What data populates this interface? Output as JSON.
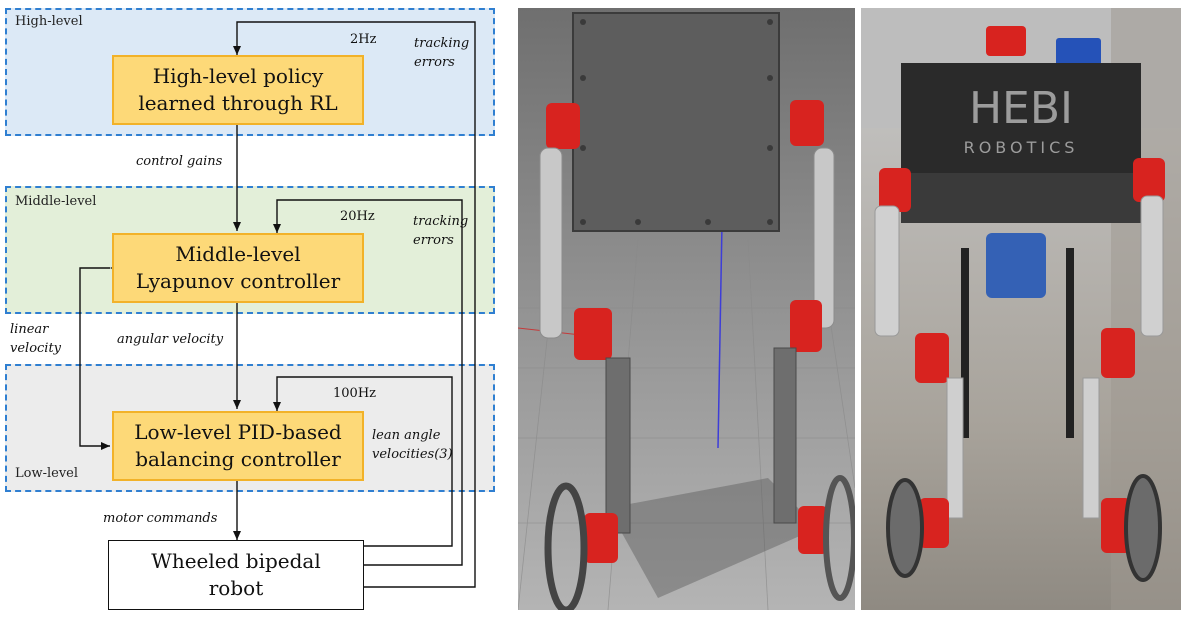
{
  "levels": {
    "high": "High-level",
    "middle": "Middle-level",
    "low": "Low-level"
  },
  "boxes": {
    "high_policy": [
      "High-level policy",
      "learned through RL"
    ],
    "middle_controller": [
      "Middle-level",
      "Lyapunov controller"
    ],
    "low_controller": [
      "Low-level PID-based",
      "balancing controller"
    ],
    "robot": [
      "Wheeled bipedal",
      "robot"
    ]
  },
  "frequencies": {
    "high": "2Hz",
    "middle": "20Hz",
    "low": "100Hz"
  },
  "signals": {
    "control_gains": "control gains",
    "angular_velocity": "angular velocity",
    "motor_commands": "motor commands",
    "linear_velocity": [
      "linear",
      "velocity"
    ],
    "tracking_errors_high": [
      "tracking",
      "errors"
    ],
    "tracking_errors_mid": [
      "tracking",
      "errors"
    ],
    "lean_angle_velocities": [
      "lean angle",
      "velocities(3)"
    ]
  },
  "photo_text": {
    "brand_line1": "HEBI",
    "brand_line2": "ROBOTICS"
  },
  "colors": {
    "box_fill": "#fdd978",
    "box_border": "#f2b229",
    "panel_border": "#2f7fd1",
    "panel_high": "#dce9f6",
    "panel_mid": "#e3efd9",
    "panel_low": "#ececec",
    "actuator_red": "#d8231f"
  }
}
